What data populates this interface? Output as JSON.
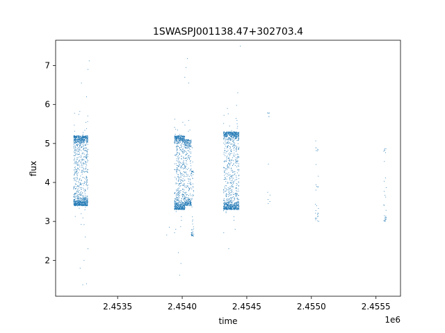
{
  "chart_data": {
    "type": "scatter",
    "title": "1SWASPJ001138.47+302703.4",
    "xlabel": "time",
    "ylabel": "flux",
    "x_offset_label": "1e6",
    "xlim": [
      2.45302,
      2.45569
    ],
    "ylim": [
      1.08,
      7.65
    ],
    "x_ticks": [
      2.4535,
      2.454,
      2.4545,
      2.455,
      2.4555
    ],
    "x_tick_labels": [
      "2.4535",
      "2.4540",
      "2.4545",
      "2.4550",
      "2.4555"
    ],
    "y_ticks": [
      2,
      3,
      4,
      5,
      6,
      7
    ],
    "y_tick_labels": [
      "2",
      "3",
      "4",
      "5",
      "6",
      "7"
    ],
    "grid": false,
    "marker_color": "#1f77b4",
    "series": [
      {
        "clusters": [
          {
            "x_range": [
              2.45316,
              2.45327
            ],
            "y_core": [
              3.4,
              5.2
            ],
            "count": 1100
          },
          {
            "x_range": [
              2.45394,
              2.45402
            ],
            "y_core": [
              3.3,
              5.2
            ],
            "count": 800
          },
          {
            "x_range": [
              2.45402,
              2.45407
            ],
            "y_core": [
              3.4,
              5.1
            ],
            "count": 350
          },
          {
            "x_range": [
              2.45407,
              2.45409
            ],
            "y_core": [
              2.6,
              4.3
            ],
            "count": 60
          },
          {
            "x_range": [
              2.45432,
              2.45444
            ],
            "y_core": [
              3.3,
              5.3
            ],
            "count": 1100
          },
          {
            "x_range": [
              2.45466,
              2.45468
            ],
            "y_core": [
              3.4,
              5.8
            ],
            "count": 12
          },
          {
            "x_range": [
              2.45503,
              2.45506
            ],
            "y_core": [
              3.0,
              4.9
            ],
            "count": 30
          },
          {
            "x_range": [
              2.45556,
              2.45558
            ],
            "y_core": [
              3.0,
              4.9
            ],
            "count": 30
          }
        ],
        "outliers": [
          [
            2.45323,
            1.37
          ],
          [
            2.45326,
            1.4
          ],
          [
            2.45321,
            1.8
          ],
          [
            2.45324,
            2.0
          ],
          [
            2.45327,
            2.3
          ],
          [
            2.45325,
            2.6
          ],
          [
            2.45322,
            6.55
          ],
          [
            2.45327,
            6.9
          ],
          [
            2.45328,
            7.12
          ],
          [
            2.45326,
            6.2
          ],
          [
            2.45398,
            1.62
          ],
          [
            2.45399,
            1.92
          ],
          [
            2.45397,
            2.2
          ],
          [
            2.45395,
            2.8
          ],
          [
            2.45402,
            6.7
          ],
          [
            2.45403,
            6.95
          ],
          [
            2.45404,
            7.18
          ],
          [
            2.45405,
            6.55
          ],
          [
            2.45436,
            2.3
          ],
          [
            2.45441,
            2.8
          ],
          [
            2.45445,
            7.5
          ],
          [
            2.45443,
            6.3
          ],
          [
            2.45435,
            5.9
          ],
          [
            2.45388,
            2.65
          ],
          [
            2.4539,
            2.85
          ]
        ]
      }
    ]
  }
}
